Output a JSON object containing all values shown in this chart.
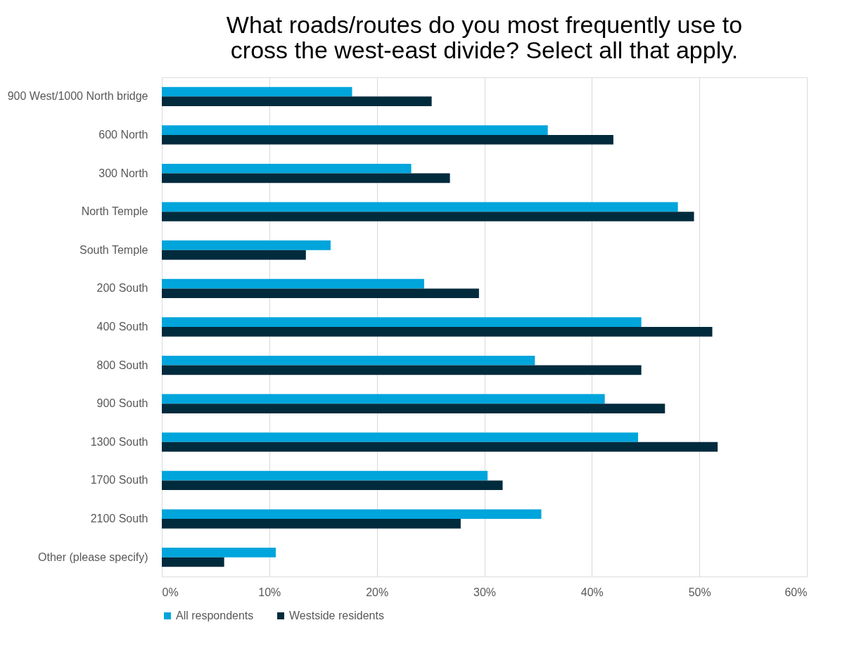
{
  "chart_data": {
    "type": "bar",
    "orientation": "horizontal",
    "title": [
      "What roads/routes do you most frequently use to",
      "cross the west-east divide? Select all that apply."
    ],
    "categories": [
      "900 West/1000 North bridge",
      "600 North",
      "300 North",
      "North Temple",
      "South Temple",
      "200 South",
      "400 South",
      "800 South",
      "900 South",
      "1300 South",
      "1700 South",
      "2100 South",
      "Other (please specify)"
    ],
    "series": [
      {
        "name": "All respondents",
        "color": "#00a5dc",
        "values": [
          17.7,
          35.9,
          23.2,
          48.0,
          15.7,
          24.4,
          44.6,
          34.7,
          41.2,
          44.3,
          30.3,
          35.3,
          10.6
        ]
      },
      {
        "name": "Westside residents",
        "color": "#002b3d",
        "values": [
          25.1,
          42.0,
          26.8,
          49.5,
          13.4,
          29.5,
          51.2,
          44.6,
          46.8,
          51.7,
          31.7,
          27.8,
          5.8
        ]
      }
    ],
    "xlim": [
      0,
      60
    ],
    "xticks": [
      {
        "value": 0,
        "label": "0%"
      },
      {
        "value": 10,
        "label": "10%"
      },
      {
        "value": 20,
        "label": "20%"
      },
      {
        "value": 30,
        "label": "30%"
      },
      {
        "value": 40,
        "label": "40%"
      },
      {
        "value": 50,
        "label": "50%"
      },
      {
        "value": 60,
        "label": "60%"
      }
    ],
    "grid": "x",
    "legend": "bottom"
  }
}
